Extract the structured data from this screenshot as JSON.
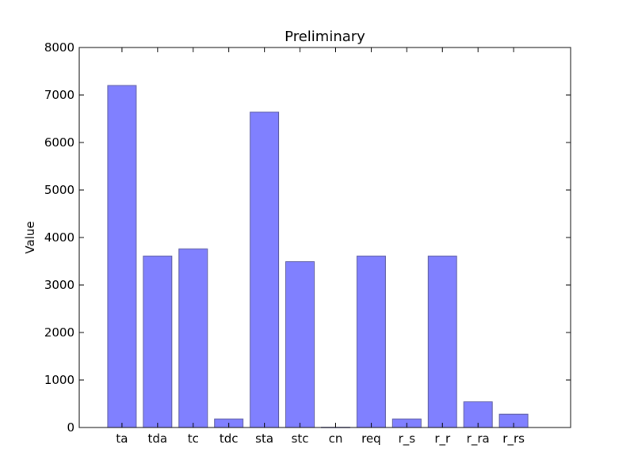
{
  "chart_data": {
    "type": "bar",
    "title": "Preliminary",
    "xlabel": "",
    "ylabel": "Value",
    "categories": [
      "ta",
      "tda",
      "tc",
      "tdc",
      "sta",
      "stc",
      "cn",
      "req",
      "r_s",
      "r_r",
      "r_ra",
      "r_rs"
    ],
    "values": [
      7200,
      3610,
      3760,
      180,
      6640,
      3490,
      5,
      3610,
      180,
      3610,
      540,
      280
    ],
    "ylim": [
      0,
      8000
    ],
    "yticks": [
      "0",
      "1000",
      "2000",
      "3000",
      "4000",
      "5000",
      "6000",
      "7000",
      "8000"
    ],
    "grid": false,
    "bar_color": "#8080ff",
    "bar_edge_color": "#5a5a9e"
  }
}
